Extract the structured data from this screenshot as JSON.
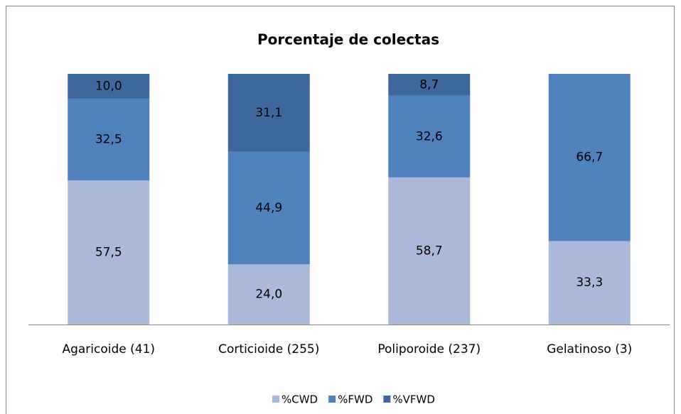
{
  "chart_data": {
    "type": "bar",
    "stacked": true,
    "percent": true,
    "title": "Porcentaje de colectas",
    "categories": [
      "Agaricoide (41)",
      "Corticioide (255)",
      "Poliporoide (237)",
      "Gelatinoso (3)"
    ],
    "series": [
      {
        "name": "%CWD",
        "color": "#aab9d9",
        "values": [
          57.5,
          24.0,
          58.7,
          33.3
        ],
        "value_labels": [
          "57,5",
          "24,0",
          "58,7",
          "33,3"
        ]
      },
      {
        "name": "%FWD",
        "color": "#4f81bd",
        "values": [
          32.5,
          44.9,
          32.6,
          66.7
        ],
        "value_labels": [
          "32,5",
          "44,9",
          "32,6",
          "66,7"
        ]
      },
      {
        "name": "%VFWD",
        "color": "#3e689b",
        "values": [
          10.0,
          31.1,
          8.7,
          null
        ],
        "value_labels": [
          "10,0",
          "31,1",
          "8,7",
          null
        ]
      }
    ],
    "legend": "bottom"
  }
}
